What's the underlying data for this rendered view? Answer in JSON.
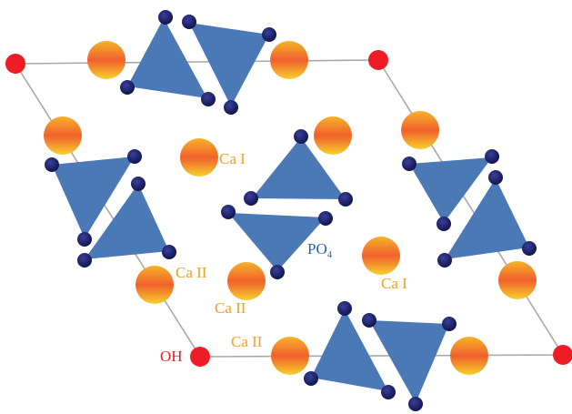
{
  "diagram": {
    "colors": {
      "cell_line": "#a9a9a9",
      "oh_atom": "#ee1c25",
      "oh_label": "#e21e26",
      "ca_label": "#f0a020",
      "po4_label": "#2a63a8",
      "tetrahedron_fill": "#4a79b5",
      "oxygen_atom": "#151a5c",
      "calcium_top": "#f6b32a",
      "calcium_mid": "#f0602c",
      "calcium_bottom": "#f7d02c"
    },
    "labels": {
      "ca1_center": "Ca I",
      "ca1_right": "Ca I",
      "ca2_left": "Ca II",
      "ca2_center": "Ca II",
      "ca2_bottom": "Ca II",
      "po4_main": "PO",
      "po4_sub": "4",
      "oh": "OH"
    }
  }
}
